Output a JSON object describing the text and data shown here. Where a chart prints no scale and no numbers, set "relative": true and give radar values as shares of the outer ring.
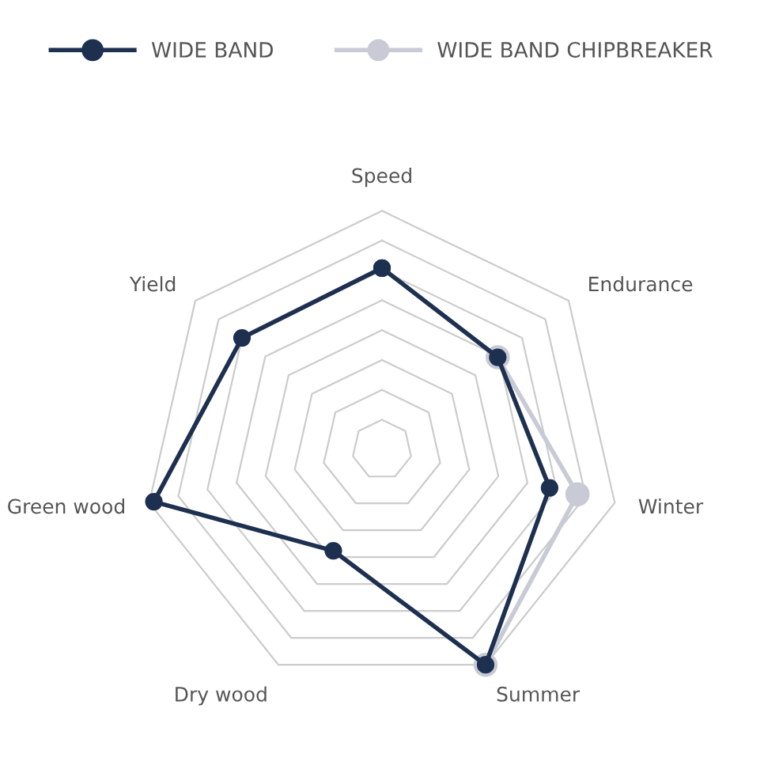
{
  "chart_data": {
    "type": "radar",
    "relative": true,
    "grid": true,
    "legend": "top",
    "marker": "circle",
    "line_style": "solid",
    "categories": [
      "Speed",
      "Endurance",
      "Winter",
      "Summer",
      "Dry wood",
      "Green wood",
      "Yield"
    ],
    "series": [
      {
        "name": "WIDE BAND CHIPBREAKER",
        "color": "#c8cad6",
        "values": [
          null,
          0.62,
          0.84,
          1.0,
          null,
          null,
          null
        ]
      },
      {
        "name": "WIDE BAND",
        "color": "#1e3050",
        "values": [
          0.76,
          0.62,
          0.72,
          1.0,
          0.47,
          0.98,
          0.75
        ]
      }
    ]
  }
}
